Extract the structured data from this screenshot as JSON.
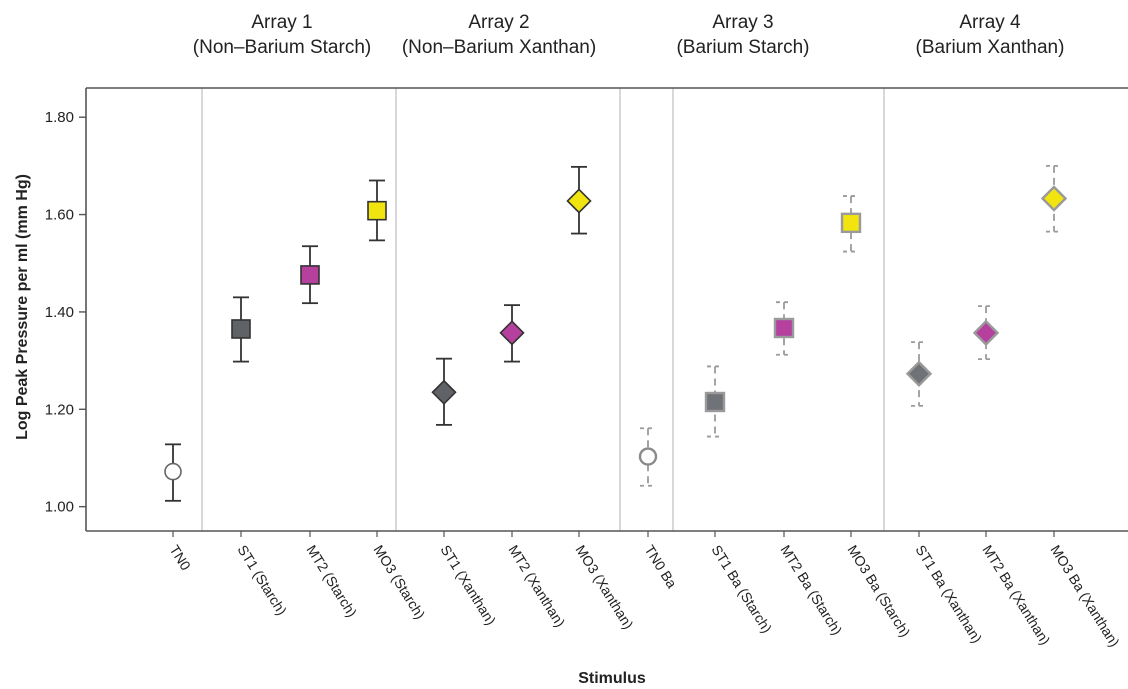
{
  "chart_data": {
    "type": "scatter",
    "xlabel": "Stimulus",
    "ylabel": "Log Peak Pressure per ml (mm Hg)",
    "ylim": [
      0.95,
      1.86
    ],
    "yticks": [
      1.0,
      1.2,
      1.4,
      1.6,
      1.8
    ],
    "ytick_labels": [
      "1.00",
      "1.20",
      "1.40",
      "1.60",
      "1.80"
    ],
    "grid": false,
    "arrays": [
      {
        "title_line1": "Array 1",
        "title_line2": "(Non–Barium Starch)"
      },
      {
        "title_line1": "Array 2",
        "title_line2": "(Non–Barium Xanthan)"
      },
      {
        "title_line1": "Array 3",
        "title_line2": "(Barium Starch)"
      },
      {
        "title_line1": "Array 4",
        "title_line2": "(Barium Xanthan)"
      }
    ],
    "categories": [
      "TN0",
      "ST1 (Starch)",
      "MT2 (Starch)",
      "MO3 (Starch)",
      "ST1 (Xanthan)",
      "MT2 (Xanthan)",
      "MO3 (Xanthan)",
      "TN0 Ba",
      "ST1 Ba (Starch)",
      "MT2 Ba (Starch)",
      "MO3 Ba (Starch)",
      "ST1 Ba (Xanthan)",
      "MT2 Ba (Xanthan)",
      "MO3 Ba (Xanthan)"
    ],
    "points": [
      {
        "y": 1.072,
        "low": 1.012,
        "high": 1.128,
        "marker": "circle",
        "fill": "#ffffff",
        "stroke": "#666666",
        "dashed": false
      },
      {
        "y": 1.365,
        "low": 1.298,
        "high": 1.43,
        "marker": "square",
        "fill": "#5f6266",
        "stroke": "#333333",
        "dashed": false
      },
      {
        "y": 1.476,
        "low": 1.418,
        "high": 1.535,
        "marker": "square",
        "fill": "#b5409d",
        "stroke": "#333333",
        "dashed": false
      },
      {
        "y": 1.608,
        "low": 1.547,
        "high": 1.67,
        "marker": "square",
        "fill": "#f1e40f",
        "stroke": "#333333",
        "dashed": false
      },
      {
        "y": 1.235,
        "low": 1.168,
        "high": 1.304,
        "marker": "diamond",
        "fill": "#5f6266",
        "stroke": "#333333",
        "dashed": false
      },
      {
        "y": 1.357,
        "low": 1.298,
        "high": 1.414,
        "marker": "diamond",
        "fill": "#b5409d",
        "stroke": "#333333",
        "dashed": false
      },
      {
        "y": 1.628,
        "low": 1.561,
        "high": 1.698,
        "marker": "diamond",
        "fill": "#f1e40f",
        "stroke": "#333333",
        "dashed": false
      },
      {
        "y": 1.103,
        "low": 1.043,
        "high": 1.161,
        "marker": "circle",
        "fill": "#ffffff",
        "stroke": "#8a8a8a",
        "dashed": true
      },
      {
        "y": 1.215,
        "low": 1.144,
        "high": 1.288,
        "marker": "square",
        "fill": "#6f7276",
        "stroke": "#9a9a9a",
        "dashed": true
      },
      {
        "y": 1.367,
        "low": 1.312,
        "high": 1.42,
        "marker": "square",
        "fill": "#b5409d",
        "stroke": "#9a9a9a",
        "dashed": true
      },
      {
        "y": 1.583,
        "low": 1.524,
        "high": 1.638,
        "marker": "square",
        "fill": "#f1e40f",
        "stroke": "#9a9a9a",
        "dashed": true
      },
      {
        "y": 1.273,
        "low": 1.207,
        "high": 1.338,
        "marker": "diamond",
        "fill": "#6f7276",
        "stroke": "#9a9a9a",
        "dashed": true
      },
      {
        "y": 1.357,
        "low": 1.303,
        "high": 1.412,
        "marker": "diamond",
        "fill": "#b5409d",
        "stroke": "#9a9a9a",
        "dashed": true
      },
      {
        "y": 1.633,
        "low": 1.565,
        "high": 1.7,
        "marker": "diamond",
        "fill": "#f1e40f",
        "stroke": "#9a9a9a",
        "dashed": true
      }
    ],
    "colors": {
      "axis": "#555555",
      "separator": "#bdbdbd",
      "gray": "#5f6266",
      "magenta": "#b5409d",
      "yellow": "#f1e40f"
    }
  }
}
